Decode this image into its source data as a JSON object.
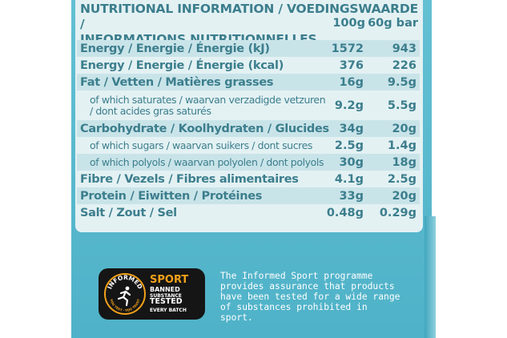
{
  "header": {
    "line1": "NUTRITIONAL INFORMATION / VOEDINGSWAARDE /",
    "line2": "INFORMATIONS NUTRITIONNELLES",
    "col_100": "100g",
    "col_60": "60g bar"
  },
  "rows": [
    {
      "name": "Energy / Energie / Énergie (kJ)",
      "v100": "1572",
      "v60": "943"
    },
    {
      "name": "Energy / Energie / Énergie (kcal)",
      "v100": "376",
      "v60": "226"
    },
    {
      "name": "Fat / Vetten / Matières grasses",
      "v100": "16g",
      "v60": "9.5g"
    },
    {
      "name": "of which saturates / waarvan verzadigde vetzuren / dont acides gras saturés",
      "v100": "9.2g",
      "v60": "5.5g"
    },
    {
      "name": "Carbohydrate / Koolhydraten / Glucides",
      "v100": "34g",
      "v60": "20g"
    },
    {
      "name": "of which sugars / waarvan suikers / dont sucres",
      "v100": "2.5g",
      "v60": "1.4g"
    },
    {
      "name": "of which polyols / waarvan polyolen / dont polyols",
      "v100": "30g",
      "v60": "18g"
    },
    {
      "name": "Fibre / Vezels / Fibres alimentaires",
      "v100": "4.1g",
      "v60": "2.5g"
    },
    {
      "name": "Protein / Eiwitten / Protéines",
      "v100": "33g",
      "v60": "20g"
    },
    {
      "name": "Salt / Zout / Sel",
      "v100": "0.48g",
      "v60": "0.29g"
    }
  ],
  "badge": {
    "ring_text": "INFORMED",
    "ring_bottom": "YOU TEST · YOU TRUST",
    "sport": "SPORT",
    "line1": "BANNED",
    "line2": "SUBSTANCE",
    "line3": "TESTED",
    "line4": "EVERY BATCH",
    "icon": "running-figure-icon"
  },
  "promo": {
    "line1": "The Informed Sport programme",
    "line2": "provides assurance that products",
    "line3": "have been tested for a wide range",
    "line4": "of substances prohibited in sport."
  },
  "colors": {
    "package": "#5fbcd0",
    "label_bg": "#e3f1f3",
    "label_band": "#c9e4e9",
    "label_text": "#3c7e8d",
    "badge_orange": "#f2a11a"
  }
}
